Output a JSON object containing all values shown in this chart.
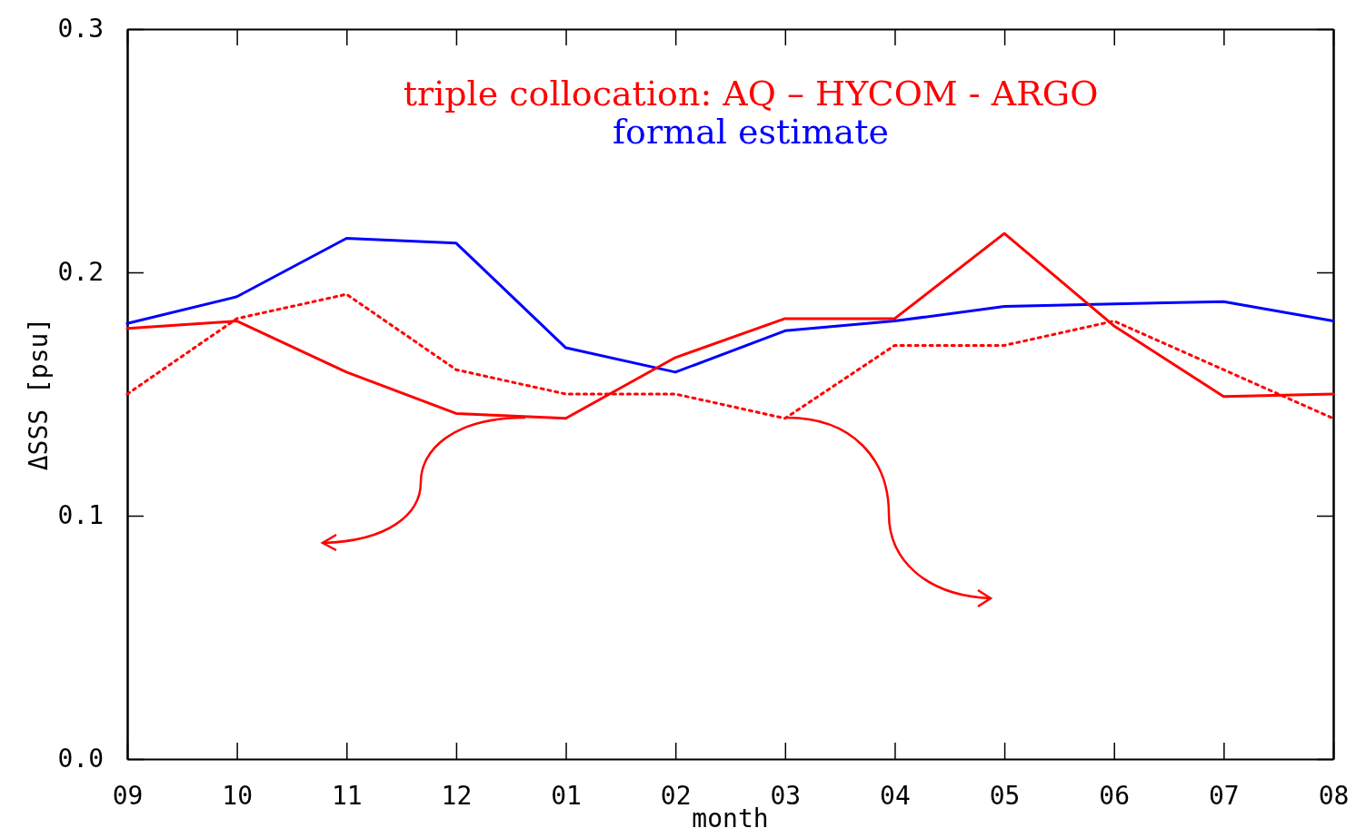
{
  "chart_data": {
    "type": "line",
    "xlabel": "month",
    "ylabel": "ΔSSS [psu]",
    "annotations": [
      "triple collocation: AQ – HYCOM - ARGO"
    ],
    "categories": [
      "09",
      "10",
      "11",
      "12",
      "01",
      "02",
      "03",
      "04",
      "05",
      "06",
      "07",
      "08"
    ],
    "ylim": [
      0,
      0.3
    ],
    "yticks": [
      {
        "value": 0,
        "label": "0.0"
      },
      {
        "value": 0.1,
        "label": "0.1"
      },
      {
        "value": 0.2,
        "label": "0.2"
      },
      {
        "value": 0.3,
        "label": "0.3"
      }
    ],
    "legend": "top",
    "marker": "none",
    "series": [
      {
        "name": "formal estimate",
        "color": "#0000ff",
        "line_style": "solid",
        "values": [
          0.179,
          0.19,
          0.214,
          0.212,
          0.169,
          0.159,
          0.176,
          0.18,
          0.186,
          0.187,
          0.188,
          0.18
        ]
      },
      {
        "color": "#ff0000",
        "line_style": "solid",
        "values": [
          0.177,
          0.18,
          0.159,
          0.142,
          0.14,
          0.165,
          0.181,
          0.181,
          0.216,
          0.178,
          0.149,
          0.15
        ]
      },
      {
        "color": "#ff0000",
        "line_style": "dotted",
        "values": [
          0.15,
          0.181,
          0.191,
          0.16,
          0.15,
          0.15,
          0.14,
          0.17,
          0.17,
          0.18,
          0.16,
          0.14
        ]
      }
    ]
  }
}
